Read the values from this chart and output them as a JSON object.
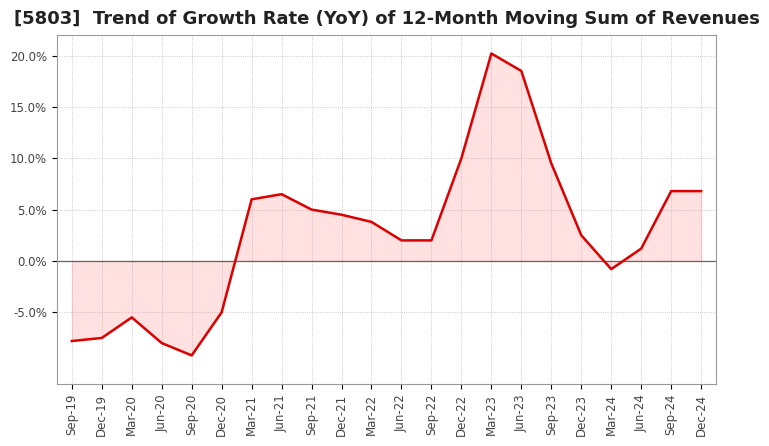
{
  "title": "[5803]  Trend of Growth Rate (YoY) of 12-Month Moving Sum of Revenues",
  "x_labels": [
    "Sep-19",
    "Dec-19",
    "Mar-20",
    "Jun-20",
    "Sep-20",
    "Dec-20",
    "Mar-21",
    "Jun-21",
    "Sep-21",
    "Dec-21",
    "Mar-22",
    "Jun-22",
    "Sep-22",
    "Dec-22",
    "Mar-23",
    "Jun-23",
    "Sep-23",
    "Dec-23",
    "Mar-24",
    "Jun-24",
    "Sep-24",
    "Dec-24"
  ],
  "y_values": [
    -7.8,
    -7.5,
    -5.5,
    -8.0,
    -9.2,
    -5.0,
    6.0,
    6.5,
    5.0,
    4.5,
    3.8,
    2.0,
    2.0,
    10.0,
    20.2,
    18.5,
    9.5,
    2.5,
    -0.8,
    1.2,
    6.8,
    6.8
  ],
  "line_color": "#DD0000",
  "line_width": 1.8,
  "fill_color": "#FF8888",
  "fill_alpha": 0.25,
  "ylim": [
    -12,
    22
  ],
  "yticks": [
    -5.0,
    0.0,
    5.0,
    10.0,
    15.0,
    20.0
  ],
  "ytick_labels": [
    "-5.0%",
    "0.0%",
    "5.0%",
    "10.0%",
    "15.0%",
    "20.0%"
  ],
  "background_color": "#FFFFFF",
  "grid_color": "#BBBBBB",
  "title_fontsize": 13,
  "tick_fontsize": 8.5
}
